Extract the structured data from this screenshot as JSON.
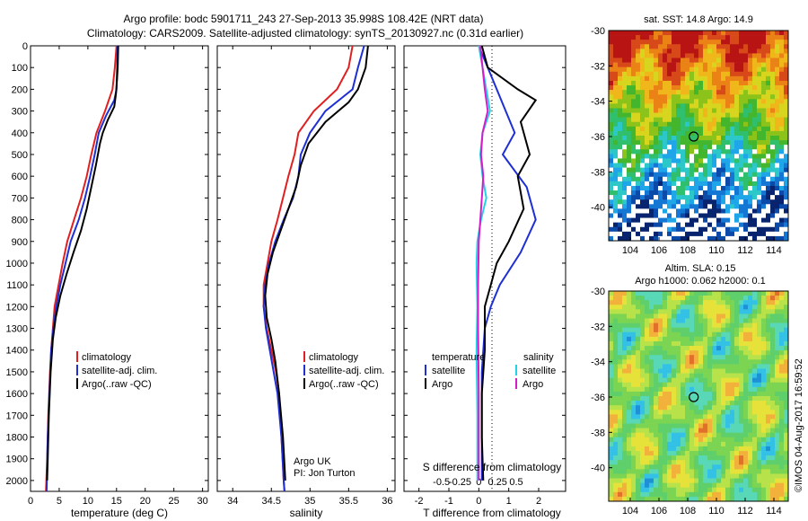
{
  "title_line1": "Argo profile: bodc 5901711_243 27-Sep-2013 35.998S 108.42E (NRT data)",
  "title_line2": "Climatology: CARS2009. Satellite-adjusted climatology: synTS_20130927.nc (0.31d earlier)",
  "timestamp": "©IMOS 04-Aug-2017 16:59:52",
  "colors": {
    "climatology": "#e02020",
    "satellite": "#1e2fd4",
    "argo": "#000000",
    "salinity_sat": "#22d3e8",
    "salinity_argo": "#d31ec8"
  },
  "chart_data": [
    {
      "type": "line",
      "panel": "temperature",
      "xlabel": "temperature (deg C)",
      "xlim": [
        0,
        31
      ],
      "xticks": [
        0,
        5,
        10,
        15,
        20,
        25,
        30
      ],
      "ylim": [
        0,
        2050
      ],
      "yticks": [
        0,
        100,
        200,
        300,
        400,
        500,
        600,
        700,
        800,
        900,
        1000,
        1100,
        1200,
        1300,
        1400,
        1500,
        1600,
        1700,
        1800,
        1900,
        2000
      ],
      "legend": [
        "climatology",
        "satellite-adj. clim.",
        "Argo(..raw -QC)"
      ],
      "series": [
        {
          "name": "climatology",
          "color_key": "climatology",
          "points": [
            [
              15,
              0
            ],
            [
              14.7,
              100
            ],
            [
              14.3,
              200
            ],
            [
              13,
              300
            ],
            [
              11.5,
              400
            ],
            [
              10.6,
              500
            ],
            [
              9.8,
              600
            ],
            [
              8.8,
              700
            ],
            [
              7.6,
              800
            ],
            [
              6.4,
              900
            ],
            [
              5.6,
              1000
            ],
            [
              4.9,
              1100
            ],
            [
              4.2,
              1200
            ],
            [
              3.9,
              1300
            ],
            [
              3.6,
              1400
            ],
            [
              3.4,
              1500
            ],
            [
              3.1,
              1700
            ],
            [
              2.9,
              1900
            ],
            [
              2.7,
              2050
            ]
          ]
        },
        {
          "name": "satellite-adj. clim.",
          "color_key": "satellite",
          "points": [
            [
              15.2,
              0
            ],
            [
              15.1,
              100
            ],
            [
              15,
              200
            ],
            [
              14.6,
              250
            ],
            [
              13.2,
              320
            ],
            [
              11.9,
              400
            ],
            [
              11.2,
              500
            ],
            [
              10.4,
              600
            ],
            [
              9.5,
              700
            ],
            [
              8.4,
              800
            ],
            [
              7,
              900
            ],
            [
              6.1,
              1000
            ],
            [
              5.2,
              1100
            ],
            [
              4.5,
              1200
            ],
            [
              4,
              1300
            ],
            [
              3.6,
              1400
            ],
            [
              3.3,
              1600
            ],
            [
              3,
              1800
            ],
            [
              2.8,
              2050
            ]
          ]
        },
        {
          "name": "Argo(..raw -QC)",
          "color_key": "argo",
          "points": [
            [
              15.3,
              0
            ],
            [
              15.2,
              100
            ],
            [
              15.1,
              150
            ],
            [
              14.9,
              220
            ],
            [
              14.6,
              280
            ],
            [
              13.5,
              340
            ],
            [
              12.6,
              400
            ],
            [
              12.1,
              450
            ],
            [
              11.4,
              550
            ],
            [
              10.6,
              650
            ],
            [
              9.8,
              750
            ],
            [
              8.8,
              850
            ],
            [
              7.5,
              950
            ],
            [
              6.3,
              1050
            ],
            [
              5.2,
              1150
            ],
            [
              4.4,
              1250
            ],
            [
              3.9,
              1350
            ],
            [
              3.5,
              1500
            ],
            [
              3.2,
              1700
            ],
            [
              3,
              1900
            ],
            [
              2.9,
              2000
            ]
          ]
        }
      ]
    },
    {
      "type": "line",
      "panel": "salinity",
      "xlabel": "salinity",
      "xlim": [
        33.8,
        36.1
      ],
      "xticks": [
        34,
        34.5,
        35,
        35.5,
        36
      ],
      "xtick_labels": [
        "34",
        "34.5",
        "35",
        "35.5",
        "36"
      ],
      "ylim": [
        0,
        2050
      ],
      "legend": [
        "climatology",
        "satellite-adj. clim.",
        "Argo(..raw -QC)"
      ],
      "annotation": [
        "Argo UK",
        "PI: Jon Turton"
      ],
      "series": [
        {
          "name": "climatology",
          "color_key": "climatology",
          "points": [
            [
              35.55,
              0
            ],
            [
              35.5,
              100
            ],
            [
              35.35,
              200
            ],
            [
              35.05,
              300
            ],
            [
              34.85,
              400
            ],
            [
              34.8,
              500
            ],
            [
              34.72,
              600
            ],
            [
              34.65,
              700
            ],
            [
              34.58,
              800
            ],
            [
              34.5,
              900
            ],
            [
              34.45,
              1000
            ],
            [
              34.4,
              1100
            ],
            [
              34.4,
              1200
            ],
            [
              34.44,
              1300
            ],
            [
              34.5,
              1400
            ],
            [
              34.56,
              1500
            ],
            [
              34.6,
              1600
            ],
            [
              34.63,
              1800
            ],
            [
              34.66,
              2000
            ],
            [
              34.67,
              2050
            ]
          ]
        },
        {
          "name": "satellite-adj. clim.",
          "color_key": "satellite",
          "points": [
            [
              35.7,
              0
            ],
            [
              35.62,
              100
            ],
            [
              35.55,
              200
            ],
            [
              35.2,
              300
            ],
            [
              35.0,
              400
            ],
            [
              34.88,
              500
            ],
            [
              34.85,
              600
            ],
            [
              34.78,
              700
            ],
            [
              34.66,
              800
            ],
            [
              34.55,
              900
            ],
            [
              34.47,
              1000
            ],
            [
              34.42,
              1100
            ],
            [
              34.4,
              1200
            ],
            [
              34.43,
              1300
            ],
            [
              34.48,
              1400
            ],
            [
              34.53,
              1500
            ],
            [
              34.58,
              1600
            ],
            [
              34.63,
              1800
            ],
            [
              34.66,
              2000
            ],
            [
              34.67,
              2050
            ]
          ]
        },
        {
          "name": "Argo(..raw -QC)",
          "color_key": "argo",
          "points": [
            [
              35.75,
              0
            ],
            [
              35.72,
              100
            ],
            [
              35.62,
              200
            ],
            [
              35.5,
              260
            ],
            [
              35.2,
              350
            ],
            [
              34.98,
              450
            ],
            [
              34.88,
              550
            ],
            [
              34.82,
              650
            ],
            [
              34.72,
              750
            ],
            [
              34.62,
              850
            ],
            [
              34.52,
              950
            ],
            [
              34.45,
              1050
            ],
            [
              34.42,
              1150
            ],
            [
              34.44,
              1250
            ],
            [
              34.5,
              1350
            ],
            [
              34.55,
              1450
            ],
            [
              34.6,
              1600
            ],
            [
              34.65,
              1800
            ],
            [
              34.68,
              2000
            ]
          ]
        }
      ]
    },
    {
      "type": "line",
      "panel": "difference",
      "xlabel_bottom": "T difference from climatology",
      "xlabel_top": "S difference from climatology",
      "xlim_T": [
        -2.5,
        2.9
      ],
      "xticks_T": [
        -2,
        -1,
        0,
        1,
        2
      ],
      "xticks_S": [
        -0.5,
        -0.25,
        0,
        0.25,
        0.5
      ],
      "xtick_labels_S": [
        "-0.5",
        "-0.25",
        "0",
        "0.25",
        "0.5"
      ],
      "ylim": [
        0,
        2050
      ],
      "legend_temperature_title": "temperature",
      "legend_salinity_title": "salinity",
      "legend_items": [
        "satellite",
        "Argo"
      ],
      "series": [
        {
          "name": "T satellite",
          "color_key": "satellite",
          "points": [
            [
              0,
              0
            ],
            [
              0.3,
              100
            ],
            [
              0.6,
              200
            ],
            [
              0.9,
              300
            ],
            [
              1.2,
              400
            ],
            [
              0.8,
              500
            ],
            [
              1.6,
              650
            ],
            [
              1.9,
              800
            ],
            [
              1.4,
              950
            ],
            [
              0.7,
              1100
            ],
            [
              0.4,
              1200
            ],
            [
              0.2,
              1300
            ],
            [
              0.1,
              1500
            ],
            [
              0.1,
              1700
            ],
            [
              0.1,
              2000
            ]
          ]
        },
        {
          "name": "T Argo",
          "color_key": "argo",
          "points": [
            [
              0.1,
              0
            ],
            [
              0.3,
              100
            ],
            [
              1.3,
              200
            ],
            [
              1.9,
              250
            ],
            [
              1.4,
              350
            ],
            [
              1.7,
              500
            ],
            [
              1.3,
              600
            ],
            [
              1.5,
              750
            ],
            [
              1.0,
              900
            ],
            [
              0.6,
              1000
            ],
            [
              0.4,
              1100
            ],
            [
              0.2,
              1200
            ],
            [
              0.2,
              1400
            ],
            [
              0.1,
              1600
            ],
            [
              0.1,
              1800
            ],
            [
              0.15,
              2000
            ]
          ]
        },
        {
          "name": "S satellite",
          "color_key": "salinity_sat",
          "points": [
            [
              0.0,
              0
            ],
            [
              0.05,
              100
            ],
            [
              0.1,
              200
            ],
            [
              0.15,
              300
            ],
            [
              0.05,
              400
            ],
            [
              0.02,
              500
            ],
            [
              0.05,
              600
            ],
            [
              0.1,
              700
            ],
            [
              0.03,
              800
            ],
            [
              -0.02,
              900
            ],
            [
              -0.03,
              1000
            ],
            [
              -0.02,
              1200
            ],
            [
              -0.03,
              1400
            ],
            [
              -0.02,
              1700
            ],
            [
              -0.02,
              2000
            ]
          ]
        },
        {
          "name": "S Argo",
          "color_key": "salinity_argo",
          "points": [
            [
              0.02,
              0
            ],
            [
              0.05,
              100
            ],
            [
              0.08,
              200
            ],
            [
              0.12,
              300
            ],
            [
              0.05,
              400
            ],
            [
              0.03,
              500
            ],
            [
              0.06,
              600
            ],
            [
              0.04,
              700
            ],
            [
              0.02,
              800
            ],
            [
              0.0,
              900
            ],
            [
              -0.01,
              1100
            ],
            [
              -0.01,
              1300
            ],
            [
              0,
              1600
            ],
            [
              0,
              2000
            ]
          ]
        }
      ]
    }
  ],
  "maps": {
    "sst": {
      "title": "sat. SST: 14.8  Argo: 14.9",
      "xticks": [
        104,
        106,
        108,
        110,
        112,
        114
      ],
      "yticks": [
        -30,
        -32,
        -34,
        -36,
        -38,
        -40
      ],
      "marker": [
        108.42,
        -36.0
      ]
    },
    "sla": {
      "title_line1": "Altim. SLA: 0.15",
      "title_line2": "Argo h1000: 0.062 h2000: 0.1",
      "xticks": [
        104,
        106,
        108,
        110,
        112,
        114
      ],
      "yticks": [
        -30,
        -32,
        -34,
        -36,
        -38,
        -40
      ],
      "marker": [
        108.42,
        -36.0
      ]
    }
  }
}
